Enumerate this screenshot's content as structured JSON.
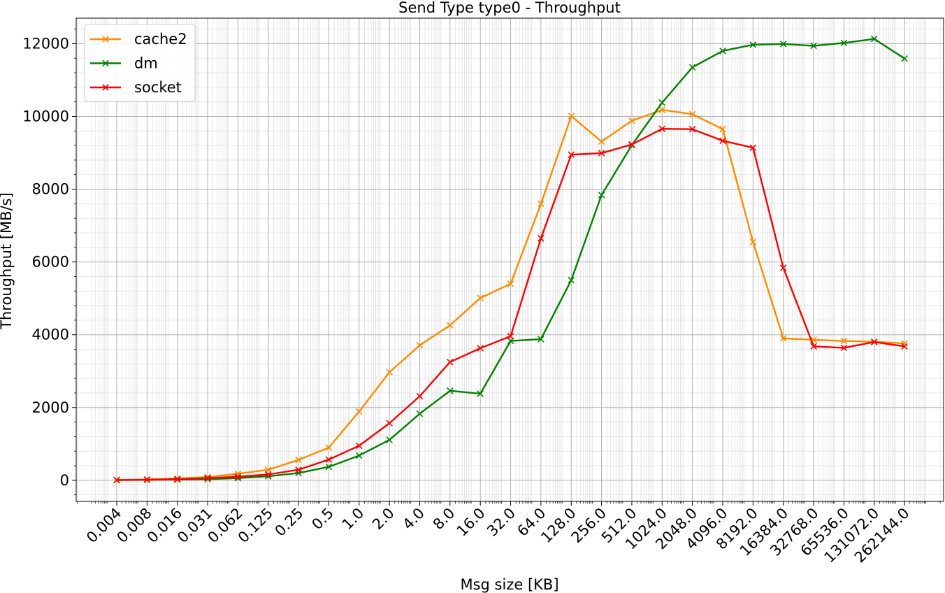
{
  "chart_data": {
    "type": "line",
    "title": "Send Type type0 - Throughput",
    "xlabel": "Msg size [KB]",
    "ylabel": "Throughput [MB/s]",
    "categories": [
      "0.004",
      "0.008",
      "0.016",
      "0.031",
      "0.062",
      "0.125",
      "0.25",
      "0.5",
      "1.0",
      "2.0",
      "4.0",
      "8.0",
      "16.0",
      "32.0",
      "64.0",
      "128.0",
      "256.0",
      "512.0",
      "1024.0",
      "2048.0",
      "4096.0",
      "8192.0",
      "16384.0",
      "32768.0",
      "65536.0",
      "131072.0",
      "262144.0"
    ],
    "yticks": [
      "0",
      "2000",
      "4000",
      "6000",
      "8000",
      "10000",
      "12000"
    ],
    "ylim": [
      -580,
      12700
    ],
    "grid": true,
    "legend_position": "top-left",
    "series": [
      {
        "name": "cache2",
        "color": "#ff8c00",
        "values": [
          10,
          25,
          50,
          90,
          180,
          290,
          560,
          900,
          1890,
          2970,
          3710,
          4260,
          5010,
          5400,
          7600,
          10010,
          9310,
          9880,
          10180,
          10060,
          9650,
          6550,
          3900,
          3860,
          3830,
          3810,
          3760
        ]
      },
      {
        "name": "dm",
        "color": "#008000",
        "values": [
          5,
          10,
          20,
          30,
          60,
          110,
          200,
          370,
          680,
          1110,
          1830,
          2460,
          2380,
          3830,
          3880,
          5500,
          7840,
          9210,
          10380,
          11350,
          11800,
          11970,
          11990,
          11940,
          12020,
          12130,
          11590
        ]
      },
      {
        "name": "socket",
        "color": "#ff0000",
        "values": [
          5,
          15,
          30,
          60,
          100,
          160,
          290,
          570,
          950,
          1570,
          2310,
          3250,
          3630,
          3960,
          6650,
          8950,
          8990,
          9230,
          9660,
          9650,
          9330,
          9140,
          5840,
          3680,
          3640,
          3800,
          3680
        ]
      }
    ]
  }
}
